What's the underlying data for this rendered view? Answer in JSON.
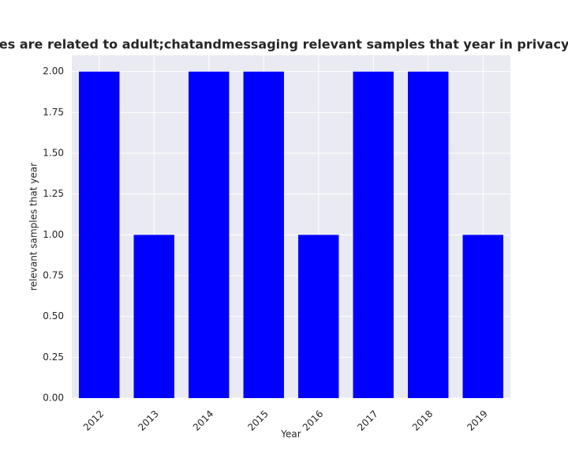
{
  "chart_data": {
    "type": "bar",
    "title": "categories are related to adult;chatandmessaging relevant samples that year in privacy policies",
    "x_label": "Year",
    "y_label": "relevant samples that year",
    "categories": [
      "2012",
      "2013",
      "2014",
      "2015",
      "2016",
      "2017",
      "2018",
      "2019"
    ],
    "values": [
      2,
      1,
      2,
      2,
      1,
      2,
      2,
      1
    ],
    "color": "#0000ff",
    "ylim": [
      0,
      2.1
    ],
    "yticks": [
      {
        "value": 0,
        "label": "0.00"
      },
      {
        "value": 0.25,
        "label": "0.25"
      },
      {
        "value": 0.5,
        "label": "0.50"
      },
      {
        "value": 0.75,
        "label": "0.75"
      },
      {
        "value": 1,
        "label": "1.00"
      },
      {
        "value": 1.25,
        "label": "1.25"
      },
      {
        "value": 1.5,
        "label": "1.50"
      },
      {
        "value": 1.75,
        "label": "1.75"
      },
      {
        "value": 2,
        "label": "2.00"
      }
    ],
    "grid": true
  }
}
